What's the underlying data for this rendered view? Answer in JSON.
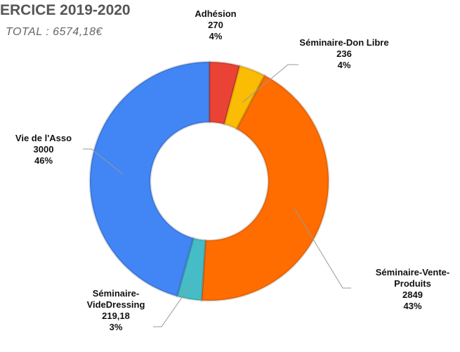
{
  "chart_data": {
    "type": "donut",
    "title": "ERCICE 2019-2020",
    "subtitle": "TOTAL : 6574,18€",
    "categories": [
      "Adhésion",
      "Séminaire-Don Libre",
      "Séminaire-Vente-Produits",
      "Séminaire-VideDressing",
      "Vie de l'Asso"
    ],
    "values": [
      270,
      236,
      2849,
      219.18,
      3000
    ],
    "value_labels": [
      "270",
      "236",
      "2849",
      "219,18",
      "3000"
    ],
    "percents": [
      4,
      4,
      43,
      3,
      46
    ],
    "percent_labels": [
      "4%",
      "4%",
      "43%",
      "3%",
      "46%"
    ],
    "colors": [
      "#ea4335",
      "#fbbc04",
      "#ff6d01",
      "#46bdc6",
      "#4285f4"
    ]
  }
}
